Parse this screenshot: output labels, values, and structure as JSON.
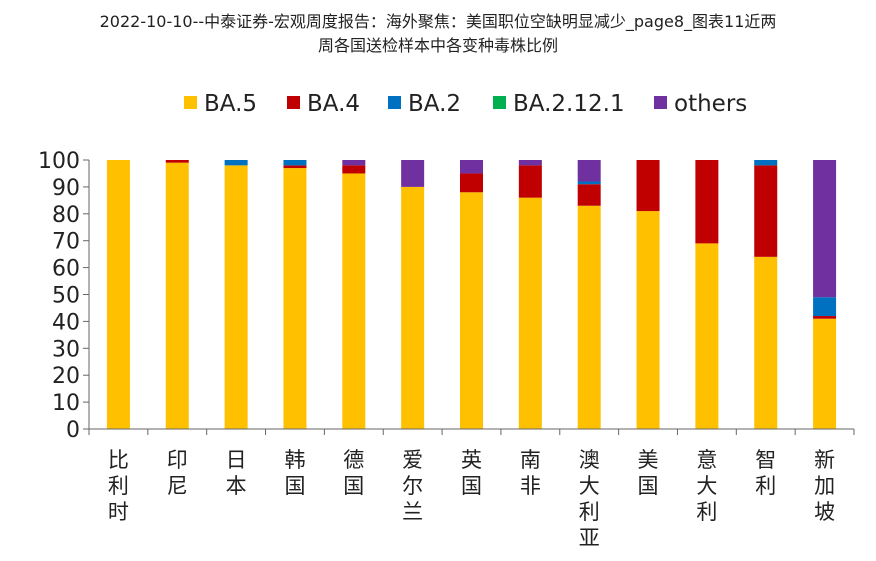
{
  "title_lines": [
    "2022-10-10--中泰证券-宏观周度报告：海外聚焦：美国职位空缺明显减少_page8_图表11近两",
    "周各国送检样本中各变种毒株比例"
  ],
  "colors": {
    "BA.5": "#FFC000",
    "BA.4": "#C00000",
    "BA.2": "#0070C0",
    "BA.2.12.1": "#00B050",
    "others": "#7030A0"
  },
  "chart_data": {
    "type": "bar",
    "stacked": true,
    "title": "",
    "xlabel": "",
    "ylabel": "",
    "ylim": [
      0,
      100
    ],
    "yticks": [
      0,
      10,
      20,
      30,
      40,
      50,
      60,
      70,
      80,
      90,
      100
    ],
    "grid": false,
    "legend_position": "top",
    "categories": [
      "比利时",
      "印尼",
      "日本",
      "韩国",
      "德国",
      "爱尔兰",
      "英国",
      "南非",
      "澳大利亚",
      "美国",
      "意大利",
      "智利",
      "新加坡"
    ],
    "series": [
      {
        "name": "BA.5",
        "values": [
          100,
          99,
          98,
          97,
          95,
          90,
          88,
          86,
          83,
          81,
          69,
          64,
          41
        ]
      },
      {
        "name": "BA.4",
        "values": [
          0,
          1,
          0,
          1,
          3,
          0,
          7,
          12,
          8,
          19,
          31,
          34,
          1
        ]
      },
      {
        "name": "BA.2",
        "values": [
          0,
          0,
          2,
          2,
          0,
          0,
          0,
          0,
          1,
          0,
          0,
          2,
          7
        ]
      },
      {
        "name": "BA.2.12.1",
        "values": [
          0,
          0,
          0,
          0,
          0,
          0,
          0,
          0,
          0,
          0,
          0,
          0,
          0
        ]
      },
      {
        "name": "others",
        "values": [
          0,
          0,
          0,
          0,
          2,
          10,
          5,
          2,
          8,
          0,
          0,
          0,
          51
        ]
      }
    ]
  }
}
